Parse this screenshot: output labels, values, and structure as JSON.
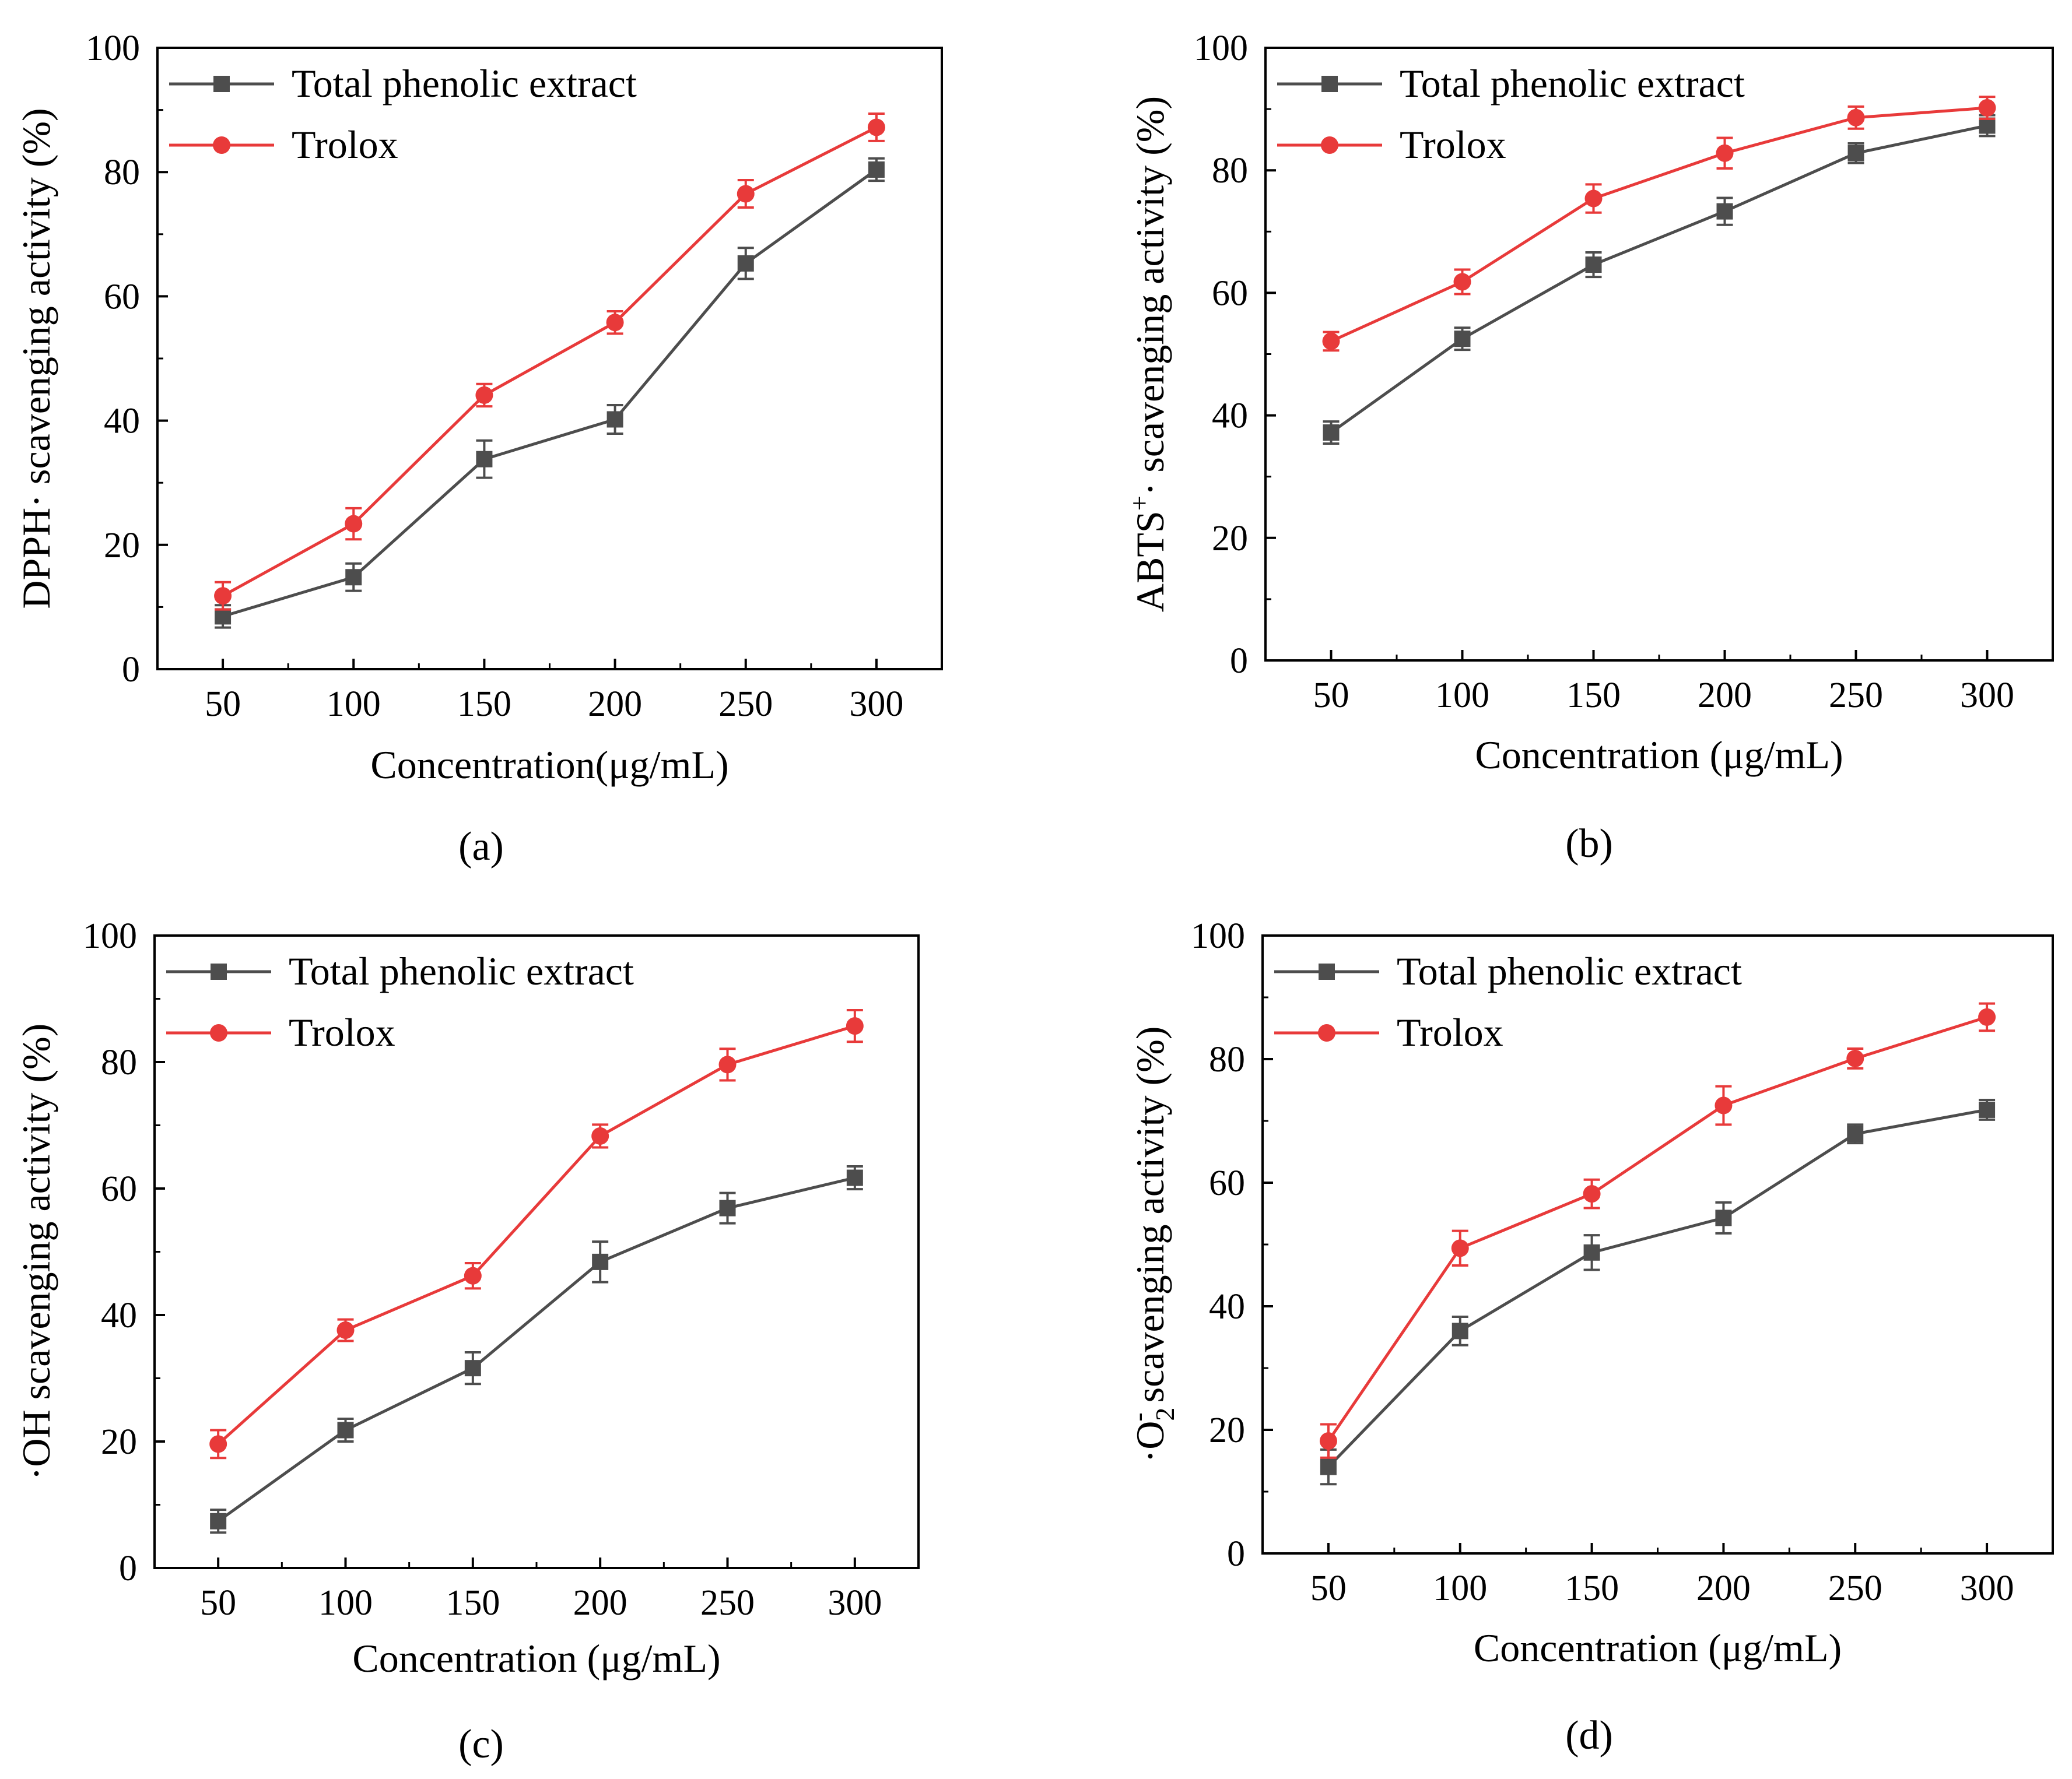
{
  "figure": {
    "panel_captions": [
      "(a)",
      "(b)",
      "(c)",
      "(d)"
    ]
  },
  "colors": {
    "total_phenolic_extract": "#4d4d4d",
    "trolox": "#e83a3a",
    "axis": "#000000"
  },
  "chart_data": [
    {
      "type": "line",
      "panel": "(a)",
      "xlabel": "Concentration(μg/mL)",
      "ylabel": "DPPH· scavenging activity (%)",
      "x": [
        50,
        100,
        150,
        200,
        250,
        300
      ],
      "xlim": [
        25,
        325
      ],
      "ylim": [
        0,
        100
      ],
      "yticks": [
        0,
        20,
        40,
        60,
        80,
        100
      ],
      "legend_position": "top-left",
      "series": [
        {
          "name": "Total phenolic extract",
          "marker": "square",
          "values": [
            8.5,
            14.8,
            33.8,
            40.2,
            65.3,
            80.4
          ],
          "errors": [
            1.8,
            2.2,
            3.0,
            2.3,
            2.5,
            1.8
          ]
        },
        {
          "name": "Trolox",
          "marker": "circle",
          "values": [
            11.8,
            23.4,
            44.1,
            55.8,
            76.5,
            87.2
          ],
          "errors": [
            2.2,
            2.5,
            1.8,
            1.8,
            2.2,
            2.2
          ]
        }
      ]
    },
    {
      "type": "line",
      "panel": "(b)",
      "xlabel": "Concentration (μg/mL)",
      "ylabel": "ABTS+· scavenging activity (%)",
      "ylabel_main": "ABTS",
      "ylabel_sup": "+",
      "ylabel_rest": "· scavenging activity (%)",
      "x": [
        50,
        100,
        150,
        200,
        250,
        300
      ],
      "xlim": [
        25,
        325
      ],
      "ylim": [
        0,
        100
      ],
      "yticks": [
        0,
        20,
        40,
        60,
        80,
        100
      ],
      "legend_position": "top-left",
      "series": [
        {
          "name": "Total phenolic extract",
          "marker": "square",
          "values": [
            37.2,
            52.5,
            64.6,
            73.3,
            82.8,
            87.3
          ],
          "errors": [
            1.8,
            1.8,
            2.0,
            2.2,
            1.6,
            1.7
          ]
        },
        {
          "name": "Trolox",
          "marker": "circle",
          "values": [
            52.1,
            61.8,
            75.4,
            82.8,
            88.6,
            90.2
          ],
          "errors": [
            1.5,
            2.0,
            2.3,
            2.5,
            1.8,
            1.8
          ]
        }
      ]
    },
    {
      "type": "line",
      "panel": "(c)",
      "xlabel": "Concentration (μg/mL)",
      "ylabel": "·OH scavenging activity (%)",
      "x": [
        50,
        100,
        150,
        200,
        250,
        300
      ],
      "xlim": [
        25,
        325
      ],
      "ylim": [
        0,
        100
      ],
      "yticks": [
        0,
        20,
        40,
        60,
        80,
        100
      ],
      "legend_position": "top-left",
      "series": [
        {
          "name": "Total phenolic extract",
          "marker": "square",
          "values": [
            7.4,
            21.8,
            31.6,
            48.4,
            56.9,
            61.7
          ],
          "errors": [
            1.8,
            1.8,
            2.5,
            3.2,
            2.4,
            1.8
          ]
        },
        {
          "name": "Trolox",
          "marker": "circle",
          "values": [
            19.6,
            37.6,
            46.2,
            68.3,
            79.6,
            85.7
          ],
          "errors": [
            2.2,
            1.7,
            2.0,
            1.8,
            2.5,
            2.5
          ]
        }
      ]
    },
    {
      "type": "line",
      "panel": "(d)",
      "xlabel": "Concentration (μg/mL)",
      "ylabel": "·O2- scavenging activity (%)",
      "ylabel_main": "·O",
      "ylabel_sub": "2",
      "ylabel_sup": "-",
      "ylabel_rest": " scavenging activity (%)",
      "x": [
        50,
        100,
        150,
        200,
        250,
        300
      ],
      "xlim": [
        25,
        325
      ],
      "ylim": [
        0,
        100
      ],
      "yticks": [
        0,
        20,
        40,
        60,
        80,
        100
      ],
      "legend_position": "top-left",
      "series": [
        {
          "name": "Total phenolic extract",
          "marker": "square",
          "values": [
            14.0,
            36.0,
            48.7,
            54.3,
            67.9,
            71.8
          ],
          "errors": [
            2.8,
            2.3,
            2.8,
            2.5,
            1.5,
            1.6
          ]
        },
        {
          "name": "Trolox",
          "marker": "circle",
          "values": [
            18.2,
            49.4,
            58.2,
            72.5,
            80.1,
            86.8
          ],
          "errors": [
            2.7,
            2.8,
            2.3,
            3.1,
            1.6,
            2.2
          ]
        }
      ]
    }
  ]
}
